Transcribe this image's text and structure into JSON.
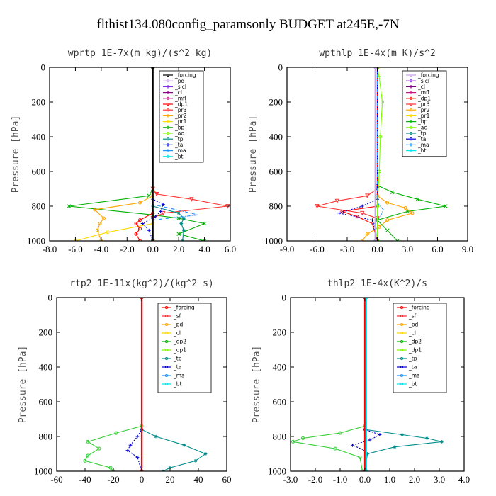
{
  "title": "flthist134.080config_paramsonly  BUDGET at245E,-7N",
  "chart_data": [
    {
      "type": "line",
      "title": "wprtp  1E-7x(m kg)/(s^2 kg)",
      "ylabel": "Pressure [hPa]",
      "xlim": [
        -8,
        6
      ],
      "ylim": [
        0,
        1000
      ],
      "xticks": [
        "-8.0",
        "-6.0",
        "-4.0",
        "-2.0",
        "0.0",
        "2.0",
        "4.0",
        "6.0"
      ],
      "xtick_values": [
        -8,
        -6,
        -4,
        -2,
        0,
        2,
        4,
        6
      ],
      "yticks": [
        "0",
        "200",
        "400",
        "600",
        "800",
        "1000"
      ],
      "ytick_values": [
        0,
        200,
        400,
        600,
        800,
        1000
      ],
      "legend": [
        "_forcing",
        "_pd",
        "_sicl",
        "_cl",
        "_mfl",
        "_dp1",
        "_pr3",
        "_pr2",
        "_pr1",
        "_bp",
        "_ac",
        "_tp",
        "_ta",
        "_ma",
        "_bt"
      ],
      "legend_colors": [
        "#000000",
        "#c8a2e8",
        "#8a2be2",
        "#800080",
        "#c71585",
        "#ff0000",
        "#ff3030",
        "#ffa500",
        "#ffd700",
        "#00b000",
        "#7cfc00",
        "#008b8b",
        "#0000cd",
        "#1e90ff",
        "#00e5ee"
      ],
      "series": [
        {
          "name": "_bp",
          "color": "#00b000",
          "marker": "x",
          "y": [
            0,
            700,
            740,
            800,
            850,
            870,
            900,
            960,
            1000
          ],
          "x": [
            0,
            0,
            -0.3,
            -6.5,
            0,
            2,
            4,
            2,
            4
          ]
        },
        {
          "name": "_pr3",
          "color": "#ff3030",
          "marker": "v",
          "y": [
            0,
            700,
            730,
            760,
            800,
            840,
            870,
            1000
          ],
          "x": [
            0,
            0,
            0.3,
            3.0,
            5.8,
            0.8,
            0,
            0
          ]
        },
        {
          "name": "_pr2",
          "color": "#ffa500",
          "marker": "o",
          "y": [
            0,
            740,
            780,
            820,
            870,
            900,
            940,
            1000
          ],
          "x": [
            0,
            0,
            -1.0,
            -4.5,
            -3.8,
            -4.1,
            -4.3,
            -4.0
          ]
        },
        {
          "name": "_pr1",
          "color": "#ffd700",
          "marker": "o",
          "y": [
            0,
            900,
            950,
            1000
          ],
          "x": [
            0,
            0,
            -3.5,
            -6.0
          ]
        },
        {
          "name": "_dp1",
          "color": "#ff0000",
          "marker": "o",
          "y": [
            0,
            840,
            880,
            900,
            930,
            960,
            1000
          ],
          "x": [
            0,
            0,
            -1.0,
            -1.3,
            -1.0,
            -1.3,
            -1.0
          ]
        },
        {
          "name": "_tp",
          "color": "#008b8b",
          "marker": "*",
          "y": [
            0,
            800,
            840,
            870,
            900,
            940,
            1000
          ],
          "x": [
            0,
            0,
            2.0,
            2.4,
            2.2,
            2.4,
            2.3
          ]
        },
        {
          "name": "_ta",
          "color": "#0000cd",
          "marker": "+",
          "y": [
            0,
            760,
            790,
            830,
            860,
            900,
            940,
            1000
          ],
          "x": [
            0,
            0,
            0.8,
            0.6,
            0.2,
            -0.8,
            -0.3,
            0
          ]
        },
        {
          "name": "_ma",
          "color": "#1e90ff",
          "marker": "",
          "y": [
            0,
            790,
            820,
            850,
            880,
            1000
          ],
          "x": [
            0,
            0,
            1.8,
            3.5,
            0,
            0
          ]
        },
        {
          "name": "_forcing",
          "color": "#000000",
          "marker": "o",
          "y": [
            0,
            1000
          ],
          "x": [
            0,
            0
          ]
        }
      ]
    },
    {
      "type": "line",
      "title": "wpthlp  1E-4x(m K)/s^2",
      "ylabel": "Pressure [hPa]",
      "xlim": [
        -9,
        9
      ],
      "ylim": [
        0,
        1000
      ],
      "xticks": [
        "-9.0",
        "-6.0",
        "-3.0",
        "0.0",
        "3.0",
        "6.0",
        "9.0"
      ],
      "xtick_values": [
        -9,
        -6,
        -3,
        0,
        3,
        6,
        9
      ],
      "yticks": [
        "0",
        "200",
        "400",
        "600",
        "800",
        "1000"
      ],
      "ytick_values": [
        0,
        200,
        400,
        600,
        800,
        1000
      ],
      "legend": [
        "_forcing",
        "_sicl",
        "_cl",
        "_mfl",
        "_dp1",
        "_pr3",
        "_pr2",
        "_pr1",
        "_bp",
        "_ac",
        "_tp",
        "_ta",
        "_ma",
        "_bt"
      ],
      "legend_colors": [
        "#c8a2e8",
        "#8a2be2",
        "#800080",
        "#c71585",
        "#ff0000",
        "#ff3030",
        "#ffa500",
        "#ffd700",
        "#00b000",
        "#7cfc00",
        "#008b8b",
        "#0000cd",
        "#1e90ff",
        "#00e5ee"
      ],
      "series": [
        {
          "name": "_bp",
          "color": "#00b000",
          "marker": "x",
          "y": [
            0,
            680,
            720,
            760,
            800,
            830,
            880,
            940,
            1000
          ],
          "x": [
            0,
            0,
            1.5,
            4.0,
            6.8,
            3.0,
            0,
            1.0,
            2.0
          ]
        },
        {
          "name": "_pr3",
          "color": "#ff3030",
          "marker": "v",
          "y": [
            0,
            700,
            740,
            770,
            800,
            840,
            870,
            1000
          ],
          "x": [
            0,
            0,
            -1.0,
            -4.0,
            -6.0,
            -1.5,
            0,
            0
          ]
        },
        {
          "name": "_pr2",
          "color": "#ffa500",
          "marker": "o",
          "y": [
            0,
            740,
            780,
            810,
            840,
            880,
            920,
            960,
            1000
          ],
          "x": [
            0,
            0,
            1.0,
            2.8,
            3.5,
            1.0,
            0.2,
            -1.0,
            -1.5
          ]
        },
        {
          "name": "_dp1",
          "color": "#ff0000",
          "marker": "o",
          "y": [
            0,
            800,
            830,
            860,
            900,
            1000
          ],
          "x": [
            0,
            0,
            -3.5,
            -2.0,
            -0.5,
            0
          ]
        },
        {
          "name": "_ta",
          "color": "#0000cd",
          "marker": "+",
          "y": [
            0,
            760,
            800,
            840,
            880,
            1000
          ],
          "x": [
            0,
            0,
            -1.5,
            -3.8,
            -0.5,
            0
          ]
        },
        {
          "name": "_ma",
          "color": "#1e90ff",
          "marker": "",
          "y": [
            0,
            780,
            820,
            860,
            900,
            1000
          ],
          "x": [
            0,
            0,
            0.6,
            0.3,
            -0.3,
            0
          ]
        },
        {
          "name": "_ac",
          "color": "#7cfc00",
          "marker": "o",
          "y": [
            0,
            60,
            200,
            400,
            600,
            800,
            1000
          ],
          "x": [
            0,
            0.2,
            0.5,
            0.3,
            0.2,
            0,
            0
          ]
        },
        {
          "name": "_forcing",
          "color": "#c8a2e8",
          "marker": "o",
          "y": [
            0,
            1000
          ],
          "x": [
            -0.2,
            -0.2
          ]
        }
      ]
    },
    {
      "type": "line",
      "title": "rtp2  1E-11x(kg^2)/(kg^2 s)",
      "ylabel": "Pressure [hPa]",
      "xlim": [
        -60,
        60
      ],
      "ylim": [
        0,
        1000
      ],
      "xticks": [
        "-60",
        "-40",
        "-20",
        "0",
        "20",
        "40",
        "60"
      ],
      "xtick_values": [
        -60,
        -40,
        -20,
        0,
        20,
        40,
        60
      ],
      "yticks": [
        "0",
        "200",
        "400",
        "600",
        "800",
        "1000"
      ],
      "ytick_values": [
        0,
        200,
        400,
        600,
        800,
        1000
      ],
      "legend": [
        "_forcing",
        "_sf",
        "_pd",
        "_cl",
        "_dp2",
        "_dp1",
        "_tp",
        "_ta",
        "_ma",
        "_bt"
      ],
      "legend_colors": [
        "#ff0000",
        "#ff3030",
        "#ffa500",
        "#ffd700",
        "#00b000",
        "#7cfc00",
        "#008b8b",
        "#0000cd",
        "#1e90ff",
        "#00e5ee"
      ],
      "series": [
        {
          "name": "_dp2",
          "color": "#32cd32",
          "marker": "o",
          "y": [
            0,
            740,
            780,
            830,
            870,
            910,
            940,
            980,
            1000
          ],
          "x": [
            0,
            0,
            -18,
            -38,
            -30,
            -38,
            -40,
            -22,
            -20
          ]
        },
        {
          "name": "_tp",
          "color": "#008b8b",
          "marker": "*",
          "y": [
            0,
            760,
            800,
            850,
            900,
            940,
            980,
            1000
          ],
          "x": [
            0,
            0,
            10,
            30,
            45,
            38,
            20,
            15
          ]
        },
        {
          "name": "_ta",
          "color": "#0000cd",
          "marker": "+",
          "y": [
            0,
            760,
            800,
            850,
            880,
            920,
            1000
          ],
          "x": [
            0,
            0,
            -3,
            -8,
            -10,
            -3,
            0
          ]
        },
        {
          "name": "_forcing",
          "color": "#ff0000",
          "marker": "o",
          "y": [
            0,
            1000
          ],
          "x": [
            0,
            0
          ]
        }
      ]
    },
    {
      "type": "line",
      "title": "thlp2  1E-4x(K^2)/s",
      "ylabel": "Pressure [hPa]",
      "xlim": [
        -3,
        4
      ],
      "ylim": [
        0,
        1000
      ],
      "xticks": [
        "-3.0",
        "-2.0",
        "-1.0",
        "0.0",
        "1.0",
        "2.0",
        "3.0",
        "4.0"
      ],
      "xtick_values": [
        -3,
        -2,
        -1,
        0,
        1,
        2,
        3,
        4
      ],
      "yticks": [
        "0",
        "200",
        "400",
        "600",
        "800",
        "1000"
      ],
      "ytick_values": [
        0,
        200,
        400,
        600,
        800,
        1000
      ],
      "legend": [
        "_forcing",
        "_sf",
        "_pd",
        "_cl",
        "_dp2",
        "_dp1",
        "_tp",
        "_ta",
        "_ma",
        "_bt"
      ],
      "legend_colors": [
        "#ff0000",
        "#ff3030",
        "#ffa500",
        "#ffd700",
        "#00b000",
        "#7cfc00",
        "#008b8b",
        "#0000cd",
        "#1e90ff",
        "#00e5ee"
      ],
      "series": [
        {
          "name": "_dp2",
          "color": "#32cd32",
          "marker": "o",
          "y": [
            0,
            740,
            780,
            810,
            830,
            870,
            920,
            1000
          ],
          "x": [
            0,
            0,
            -1.0,
            -2.5,
            -2.9,
            -1.2,
            -0.2,
            -0.1
          ]
        },
        {
          "name": "_tp",
          "color": "#008b8b",
          "marker": "*",
          "y": [
            0,
            760,
            790,
            810,
            830,
            860,
            900,
            1000
          ],
          "x": [
            0,
            0,
            1.5,
            2.5,
            3.1,
            1.2,
            0.1,
            0
          ]
        },
        {
          "name": "_ta",
          "color": "#0000cd",
          "marker": "+",
          "y": [
            0,
            760,
            790,
            820,
            850,
            880,
            1000
          ],
          "x": [
            0,
            0,
            0.6,
            0.2,
            -0.5,
            0,
            0
          ]
        },
        {
          "name": "_forcing",
          "color": "#ff0000",
          "marker": "o",
          "y": [
            0,
            1000
          ],
          "x": [
            0,
            0
          ]
        },
        {
          "name": "_bt",
          "color": "#00e5ee",
          "marker": "o",
          "y": [
            0,
            1000
          ],
          "x": [
            0.05,
            0.05
          ]
        }
      ]
    }
  ]
}
